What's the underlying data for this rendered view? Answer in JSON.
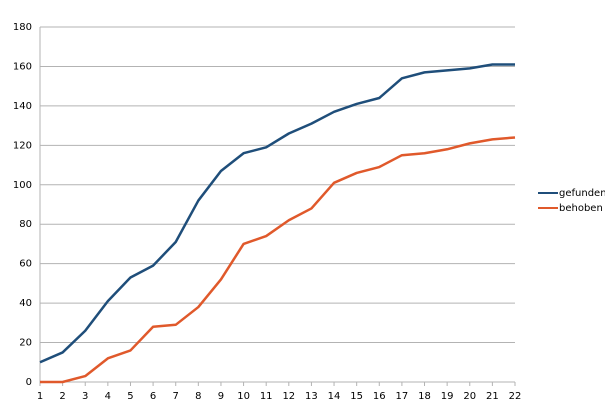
{
  "chart_data": {
    "type": "line",
    "x": [
      1,
      2,
      3,
      4,
      5,
      6,
      7,
      8,
      9,
      10,
      11,
      12,
      13,
      14,
      15,
      16,
      17,
      18,
      19,
      20,
      21,
      22
    ],
    "series": [
      {
        "name": "gefunden",
        "color": "#1f4e7a",
        "values": [
          10,
          15,
          26,
          41,
          53,
          59,
          71,
          92,
          107,
          116,
          119,
          126,
          131,
          137,
          141,
          144,
          154,
          157,
          158,
          159,
          161,
          161
        ]
      },
      {
        "name": "behoben",
        "color": "#e0592b",
        "values": [
          0,
          0,
          3,
          12,
          16,
          28,
          29,
          38,
          52,
          70,
          74,
          82,
          88,
          101,
          106,
          109,
          115,
          116,
          118,
          121,
          123,
          124
        ]
      }
    ],
    "xlim": [
      1,
      22
    ],
    "xticks": [
      1,
      2,
      3,
      4,
      5,
      6,
      7,
      8,
      9,
      10,
      11,
      12,
      13,
      14,
      15,
      16,
      17,
      18,
      19,
      20,
      21,
      22
    ],
    "ylim": [
      0,
      180
    ],
    "yticks": [
      0,
      20,
      40,
      60,
      80,
      100,
      120,
      140,
      160,
      180
    ],
    "grid": true,
    "legend": "right"
  }
}
